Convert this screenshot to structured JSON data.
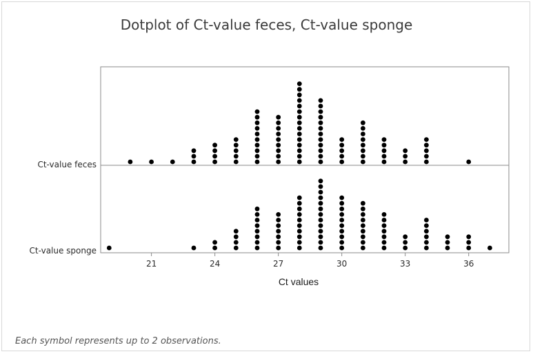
{
  "chart_data": {
    "type": "scatter",
    "subtype": "dotplot",
    "title": "Dotplot of Ct-value feces, Ct-value sponge",
    "xlabel": "Ct values",
    "footnote": "Each symbol represents up to 2 observations.",
    "xlim": [
      18.6,
      37.9
    ],
    "xticks": [
      21,
      24,
      27,
      30,
      33,
      36
    ],
    "dot_color": "#000000",
    "series": [
      {
        "name": "Ct-value feces",
        "stacks": [
          {
            "x": 20,
            "count": 1
          },
          {
            "x": 21,
            "count": 1
          },
          {
            "x": 22,
            "count": 1
          },
          {
            "x": 23,
            "count": 3
          },
          {
            "x": 24,
            "count": 4
          },
          {
            "x": 25,
            "count": 5
          },
          {
            "x": 26,
            "count": 10
          },
          {
            "x": 27,
            "count": 9
          },
          {
            "x": 28,
            "count": 15
          },
          {
            "x": 29,
            "count": 12
          },
          {
            "x": 30,
            "count": 5
          },
          {
            "x": 31,
            "count": 8
          },
          {
            "x": 32,
            "count": 5
          },
          {
            "x": 33,
            "count": 3
          },
          {
            "x": 34,
            "count": 5
          },
          {
            "x": 36,
            "count": 1
          }
        ]
      },
      {
        "name": "Ct-value sponge",
        "stacks": [
          {
            "x": 19,
            "count": 1
          },
          {
            "x": 23,
            "count": 1
          },
          {
            "x": 24,
            "count": 2
          },
          {
            "x": 25,
            "count": 4
          },
          {
            "x": 26,
            "count": 8
          },
          {
            "x": 27,
            "count": 7
          },
          {
            "x": 28,
            "count": 10
          },
          {
            "x": 29,
            "count": 13
          },
          {
            "x": 30,
            "count": 10
          },
          {
            "x": 31,
            "count": 9
          },
          {
            "x": 32,
            "count": 7
          },
          {
            "x": 33,
            "count": 3
          },
          {
            "x": 34,
            "count": 6
          },
          {
            "x": 35,
            "count": 3
          },
          {
            "x": 36,
            "count": 3
          },
          {
            "x": 37,
            "count": 1
          }
        ]
      }
    ]
  }
}
